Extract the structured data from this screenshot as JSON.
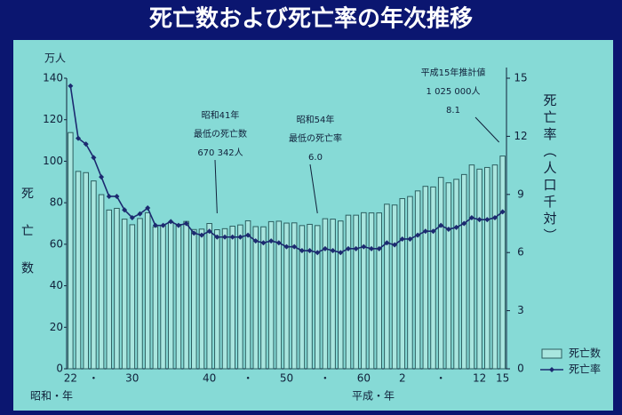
{
  "chart_data": {
    "type": "bar",
    "title": "死亡数および死亡率の年次推移",
    "y_unit": "万人",
    "y_label": "死亡数",
    "y2_label": "死亡率（人口千対）",
    "x_era_labels": [
      "昭和・年",
      "平成・年"
    ],
    "categories": [
      "22",
      null,
      null,
      "・",
      null,
      null,
      null,
      null,
      "30",
      null,
      null,
      null,
      null,
      null,
      null,
      null,
      null,
      null,
      "40",
      null,
      null,
      null,
      null,
      "・",
      null,
      null,
      null,
      null,
      "50",
      null,
      null,
      null,
      null,
      "・",
      null,
      null,
      null,
      null,
      "60",
      null,
      null,
      null,
      null,
      "2",
      null,
      null,
      null,
      null,
      "・",
      null,
      null,
      null,
      null,
      "12",
      null,
      null,
      "15"
    ],
    "series": [
      {
        "name": "死亡数",
        "type": "bar",
        "axis": "y",
        "color": "#a9e6df",
        "values": [
          113.8,
          95.1,
          94.5,
          90.5,
          83.9,
          76.5,
          77.3,
          72.1,
          69.4,
          72.4,
          75.2,
          68.4,
          69.0,
          70.7,
          69.6,
          71.0,
          67.1,
          67.3,
          70.0,
          67.0,
          67.5,
          68.7,
          69.3,
          71.3,
          68.5,
          68.4,
          70.9,
          71.1,
          70.2,
          70.3,
          69.0,
          69.6,
          69.0,
          72.3,
          72.1,
          71.2,
          74.0,
          74.0,
          75.2,
          75.1,
          75.1,
          79.3,
          78.9,
          82.0,
          83.0,
          85.7,
          87.9,
          87.6,
          92.2,
          89.6,
          91.3,
          93.6,
          98.2,
          96.2,
          97.0,
          98.2,
          102.5
        ]
      },
      {
        "name": "死亡率",
        "type": "line",
        "axis": "y2",
        "color": "#1c2a70",
        "values": [
          14.6,
          11.9,
          11.6,
          10.9,
          9.9,
          8.9,
          8.9,
          8.2,
          7.8,
          8.0,
          8.3,
          7.4,
          7.4,
          7.6,
          7.4,
          7.5,
          7.0,
          6.9,
          7.1,
          6.8,
          6.8,
          6.8,
          6.8,
          6.9,
          6.6,
          6.5,
          6.6,
          6.5,
          6.3,
          6.3,
          6.1,
          6.1,
          6.0,
          6.2,
          6.1,
          6.0,
          6.2,
          6.2,
          6.3,
          6.2,
          6.2,
          6.5,
          6.4,
          6.7,
          6.7,
          6.9,
          7.1,
          7.1,
          7.4,
          7.2,
          7.3,
          7.5,
          7.8,
          7.7,
          7.7,
          7.8,
          8.1
        ]
      }
    ],
    "ylim": [
      0,
      140
    ],
    "yticks": [
      0,
      20,
      40,
      60,
      80,
      100,
      120,
      140
    ],
    "y2lim": [
      0,
      15
    ],
    "y2ticks": [
      0,
      3,
      6,
      9,
      12,
      15
    ],
    "annotations": [
      [
        "昭和41年",
        "最低の死亡数",
        "670 342人"
      ],
      [
        "昭和54年",
        "最低の死亡率",
        "6.0"
      ],
      [
        "平成15年推計値",
        "1 025 000人",
        "8.1"
      ]
    ]
  }
}
